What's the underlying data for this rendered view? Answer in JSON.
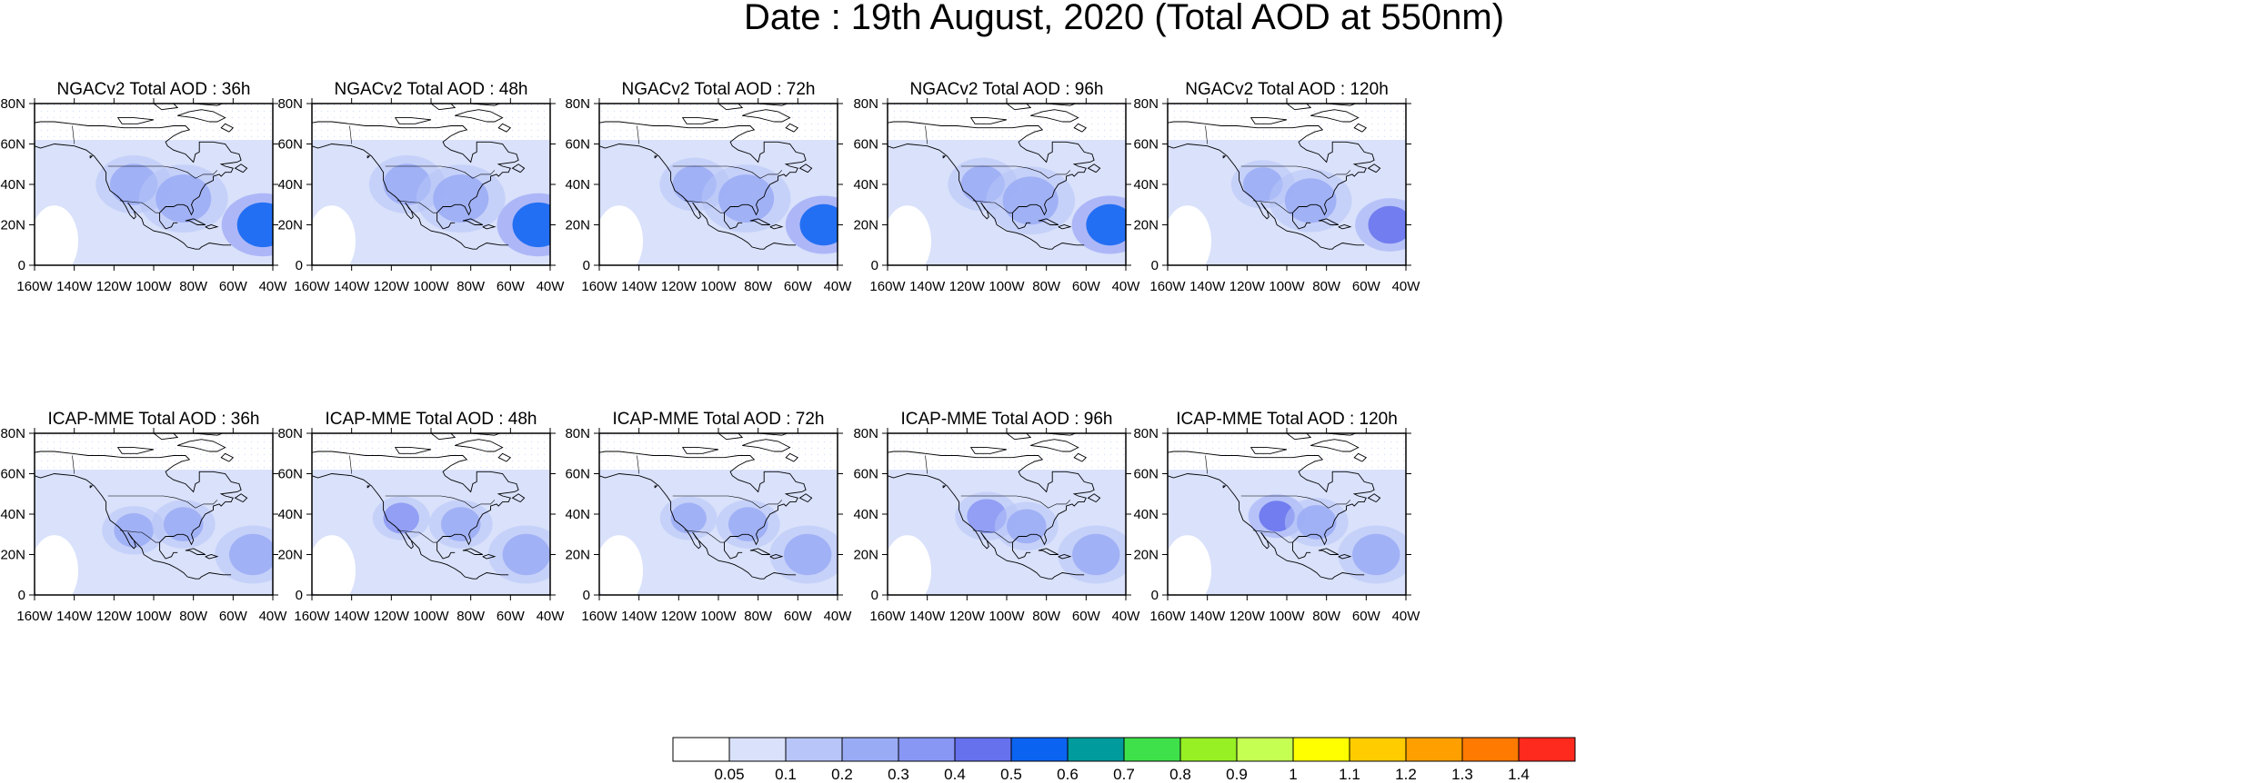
{
  "figure": {
    "title": "Date : 19th August, 2020 (Total AOD at 550nm)"
  },
  "colors": {
    "levels": [
      "#ffffff",
      "#d9e1fb",
      "#b7c5f8",
      "#9aabf6",
      "#8896f4",
      "#6671ed",
      "#0b63f2",
      "#009b9c",
      "#3ee14a",
      "#96f023",
      "#c4ff52",
      "#ffff00",
      "#ffcc00",
      "#ffa000",
      "#ff7a00",
      "#ff2a1e"
    ],
    "land_outline": "#000000"
  },
  "colorbar": {
    "labels": [
      "0.05",
      "0.1",
      "0.2",
      "0.3",
      "0.4",
      "0.5",
      "0.6",
      "0.7",
      "0.8",
      "0.9",
      "1",
      "1.1",
      "1.2",
      "1.3",
      "1.4"
    ]
  },
  "chart_data": [
    {
      "type": "heatmap",
      "title": "NGACv2 Total AOD : 36h",
      "x_ticks": [
        "160W",
        "140W",
        "120W",
        "100W",
        "80W",
        "60W",
        "40W"
      ],
      "y_ticks": [
        "0",
        "20N",
        "40N",
        "60N",
        "80N"
      ],
      "xlim": [
        -160,
        -40
      ],
      "ylim": [
        0,
        80
      ],
      "plumes": [
        {
          "lon": -45,
          "lat": 20,
          "r": 13,
          "level": 6
        },
        {
          "lon": -110,
          "lat": 40,
          "r": 12,
          "level": 3
        },
        {
          "lon": -85,
          "lat": 33,
          "r": 14,
          "level": 3
        }
      ]
    },
    {
      "type": "heatmap",
      "title": "NGACv2 Total AOD : 48h",
      "x_ticks": [
        "160W",
        "140W",
        "120W",
        "100W",
        "80W",
        "60W",
        "40W"
      ],
      "y_ticks": [
        "0",
        "20N",
        "40N",
        "60N",
        "80N"
      ],
      "xlim": [
        -160,
        -40
      ],
      "ylim": [
        0,
        80
      ],
      "plumes": [
        {
          "lon": -46,
          "lat": 20,
          "r": 13,
          "level": 6
        },
        {
          "lon": -112,
          "lat": 40,
          "r": 12,
          "level": 3
        },
        {
          "lon": -85,
          "lat": 33,
          "r": 14,
          "level": 3
        }
      ]
    },
    {
      "type": "heatmap",
      "title": "NGACv2 Total AOD : 72h",
      "x_ticks": [
        "160W",
        "140W",
        "120W",
        "100W",
        "80W",
        "60W",
        "40W"
      ],
      "y_ticks": [
        "0",
        "20N",
        "40N",
        "60N",
        "80N"
      ],
      "xlim": [
        -160,
        -40
      ],
      "ylim": [
        0,
        80
      ],
      "plumes": [
        {
          "lon": -47,
          "lat": 20,
          "r": 12,
          "level": 6
        },
        {
          "lon": -112,
          "lat": 40,
          "r": 11,
          "level": 3
        },
        {
          "lon": -86,
          "lat": 33,
          "r": 14,
          "level": 3
        }
      ]
    },
    {
      "type": "heatmap",
      "title": "NGACv2 Total AOD : 96h",
      "x_ticks": [
        "160W",
        "140W",
        "120W",
        "100W",
        "80W",
        "60W",
        "40W"
      ],
      "y_ticks": [
        "0",
        "20N",
        "40N",
        "60N",
        "80N"
      ],
      "xlim": [
        -160,
        -40
      ],
      "ylim": [
        0,
        80
      ],
      "plumes": [
        {
          "lon": -48,
          "lat": 20,
          "r": 12,
          "level": 6
        },
        {
          "lon": -112,
          "lat": 40,
          "r": 11,
          "level": 3
        },
        {
          "lon": -88,
          "lat": 32,
          "r": 14,
          "level": 3
        }
      ]
    },
    {
      "type": "heatmap",
      "title": "NGACv2 Total AOD : 120h",
      "x_ticks": [
        "160W",
        "140W",
        "120W",
        "100W",
        "80W",
        "60W",
        "40W"
      ],
      "y_ticks": [
        "0",
        "20N",
        "40N",
        "60N",
        "80N"
      ],
      "xlim": [
        -160,
        -40
      ],
      "ylim": [
        0,
        80
      ],
      "plumes": [
        {
          "lon": -48,
          "lat": 20,
          "r": 11,
          "level": 5
        },
        {
          "lon": -112,
          "lat": 40,
          "r": 10,
          "level": 3
        },
        {
          "lon": -88,
          "lat": 32,
          "r": 13,
          "level": 3
        }
      ]
    },
    {
      "type": "heatmap",
      "title": "ICAP-MME Total AOD : 36h",
      "x_ticks": [
        "160W",
        "140W",
        "120W",
        "100W",
        "80W",
        "60W",
        "40W"
      ],
      "y_ticks": [
        "0",
        "20N",
        "40N",
        "60N",
        "80N"
      ],
      "xlim": [
        -160,
        -40
      ],
      "ylim": [
        0,
        80
      ],
      "plumes": [
        {
          "lon": -110,
          "lat": 32,
          "r": 10,
          "level": 3
        },
        {
          "lon": -85,
          "lat": 35,
          "r": 10,
          "level": 3
        },
        {
          "lon": -50,
          "lat": 20,
          "r": 12,
          "level": 3
        }
      ]
    },
    {
      "type": "heatmap",
      "title": "ICAP-MME Total AOD : 48h",
      "x_ticks": [
        "160W",
        "140W",
        "120W",
        "100W",
        "80W",
        "60W",
        "40W"
      ],
      "y_ticks": [
        "0",
        "20N",
        "40N",
        "60N",
        "80N"
      ],
      "xlim": [
        -160,
        -40
      ],
      "ylim": [
        0,
        80
      ],
      "plumes": [
        {
          "lon": -115,
          "lat": 38,
          "r": 9,
          "level": 4
        },
        {
          "lon": -85,
          "lat": 35,
          "r": 10,
          "level": 3
        },
        {
          "lon": -52,
          "lat": 20,
          "r": 12,
          "level": 3
        }
      ]
    },
    {
      "type": "heatmap",
      "title": "ICAP-MME Total AOD : 72h",
      "x_ticks": [
        "160W",
        "140W",
        "120W",
        "100W",
        "80W",
        "60W",
        "40W"
      ],
      "y_ticks": [
        "0",
        "20N",
        "40N",
        "60N",
        "80N"
      ],
      "xlim": [
        -160,
        -40
      ],
      "ylim": [
        0,
        80
      ],
      "plumes": [
        {
          "lon": -115,
          "lat": 38,
          "r": 9,
          "level": 3
        },
        {
          "lon": -85,
          "lat": 35,
          "r": 10,
          "level": 3
        },
        {
          "lon": -55,
          "lat": 20,
          "r": 12,
          "level": 3
        }
      ]
    },
    {
      "type": "heatmap",
      "title": "ICAP-MME Total AOD : 96h",
      "x_ticks": [
        "160W",
        "140W",
        "120W",
        "100W",
        "80W",
        "60W",
        "40W"
      ],
      "y_ticks": [
        "0",
        "20N",
        "40N",
        "60N",
        "80N"
      ],
      "xlim": [
        -160,
        -40
      ],
      "ylim": [
        0,
        80
      ],
      "plumes": [
        {
          "lon": -110,
          "lat": 39,
          "r": 10,
          "level": 4
        },
        {
          "lon": -90,
          "lat": 34,
          "r": 10,
          "level": 3
        },
        {
          "lon": -55,
          "lat": 20,
          "r": 12,
          "level": 3
        }
      ]
    },
    {
      "type": "heatmap",
      "title": "ICAP-MME Total AOD : 120h",
      "x_ticks": [
        "160W",
        "140W",
        "120W",
        "100W",
        "80W",
        "60W",
        "40W"
      ],
      "y_ticks": [
        "0",
        "20N",
        "40N",
        "60N",
        "80N"
      ],
      "xlim": [
        -160,
        -40
      ],
      "ylim": [
        0,
        80
      ],
      "plumes": [
        {
          "lon": -105,
          "lat": 39,
          "r": 9,
          "level": 5
        },
        {
          "lon": -85,
          "lat": 36,
          "r": 10,
          "level": 3
        },
        {
          "lon": -55,
          "lat": 20,
          "r": 12,
          "level": 3
        }
      ]
    }
  ]
}
